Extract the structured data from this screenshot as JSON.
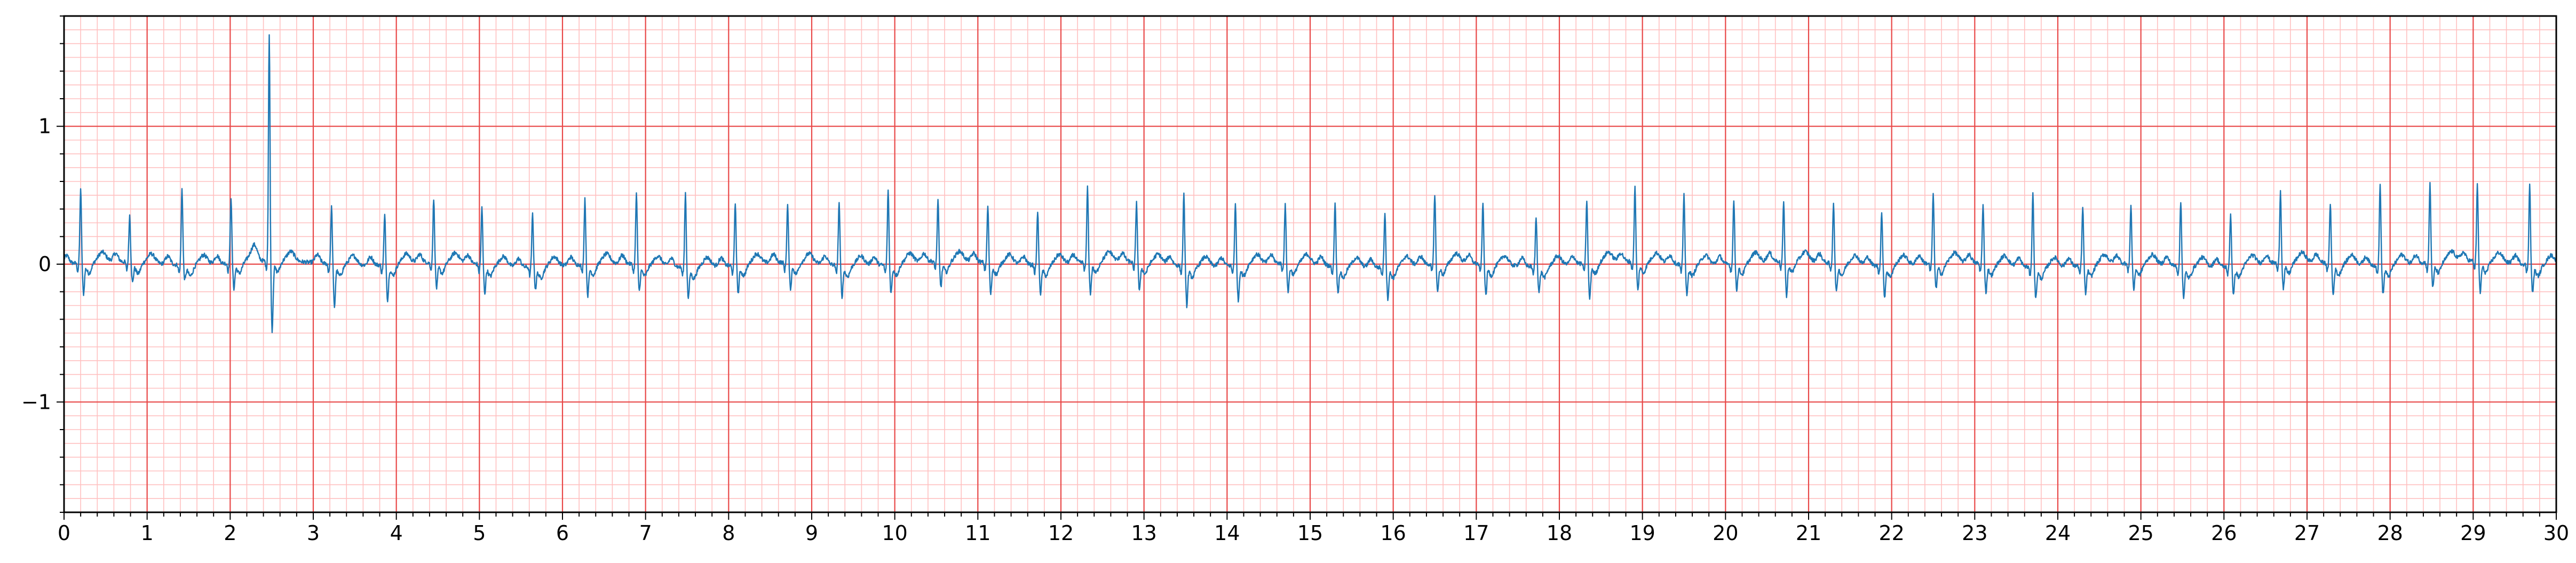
{
  "chart_data": {
    "type": "line",
    "title": "",
    "xlabel": "",
    "ylabel": "",
    "xlim": [
      0,
      30
    ],
    "ylim": [
      -1.8,
      1.8
    ],
    "x_ticks": [
      0,
      1,
      2,
      3,
      4,
      5,
      6,
      7,
      8,
      9,
      10,
      11,
      12,
      13,
      14,
      15,
      16,
      17,
      18,
      19,
      20,
      21,
      22,
      23,
      24,
      25,
      26,
      27,
      28,
      29,
      30
    ],
    "x_tick_labels": [
      "0",
      "1",
      "2",
      "3",
      "4",
      "5",
      "6",
      "7",
      "8",
      "9",
      "10",
      "11",
      "12",
      "13",
      "14",
      "15",
      "16",
      "17",
      "18",
      "19",
      "20",
      "21",
      "22",
      "23",
      "24",
      "25",
      "26",
      "27",
      "28",
      "29",
      "30"
    ],
    "y_ticks": [
      -1,
      0,
      1
    ],
    "y_tick_labels": [
      "−1",
      "0",
      "1"
    ],
    "grid": "ecg",
    "grid_major_step": {
      "x": 1,
      "y": 1
    },
    "grid_minor_step": {
      "x": 0.2,
      "y": 0.1
    },
    "series": [
      {
        "color": "#1f77b4",
        "beat_times": [
          0.2,
          0.79,
          1.42,
          2.01,
          2.47,
          3.22,
          3.86,
          4.45,
          5.03,
          5.64,
          6.27,
          6.89,
          7.48,
          8.08,
          8.71,
          9.33,
          9.92,
          10.52,
          11.12,
          11.72,
          12.32,
          12.91,
          13.48,
          14.1,
          14.7,
          15.3,
          15.9,
          16.5,
          17.08,
          17.72,
          18.33,
          18.91,
          19.5,
          20.1,
          20.7,
          21.3,
          21.88,
          22.5,
          23.1,
          23.7,
          24.3,
          24.88,
          25.48,
          26.08,
          26.68,
          27.28,
          27.88,
          28.48,
          29.05,
          29.68
        ],
        "r_amplitudes": [
          0.48,
          0.28,
          0.5,
          0.42,
          1.58,
          0.36,
          0.3,
          0.4,
          0.35,
          0.33,
          0.42,
          0.46,
          0.48,
          0.39,
          0.36,
          0.4,
          0.48,
          0.38,
          0.35,
          0.33,
          0.48,
          0.38,
          0.46,
          0.38,
          0.36,
          0.4,
          0.34,
          0.45,
          0.38,
          0.3,
          0.4,
          0.48,
          0.45,
          0.4,
          0.36,
          0.38,
          0.33,
          0.44,
          0.36,
          0.47,
          0.36,
          0.36,
          0.41,
          0.32,
          0.46,
          0.38,
          0.53,
          0.51,
          0.49,
          0.52
        ],
        "s_amplitudes": [
          -0.22,
          -0.14,
          -0.1,
          -0.18,
          -0.5,
          -0.3,
          -0.25,
          -0.18,
          -0.2,
          -0.15,
          -0.22,
          -0.18,
          -0.22,
          -0.2,
          -0.18,
          -0.22,
          -0.2,
          -0.18,
          -0.22,
          -0.2,
          -0.22,
          -0.2,
          -0.28,
          -0.25,
          -0.2,
          -0.18,
          -0.22,
          -0.2,
          -0.22,
          -0.18,
          -0.25,
          -0.2,
          -0.22,
          -0.18,
          -0.25,
          -0.2,
          -0.22,
          -0.18,
          -0.2,
          -0.22,
          -0.2,
          -0.18,
          -0.22,
          -0.2,
          -0.18,
          -0.22,
          -0.2,
          -0.18,
          -0.22,
          -0.2
        ]
      }
    ]
  }
}
